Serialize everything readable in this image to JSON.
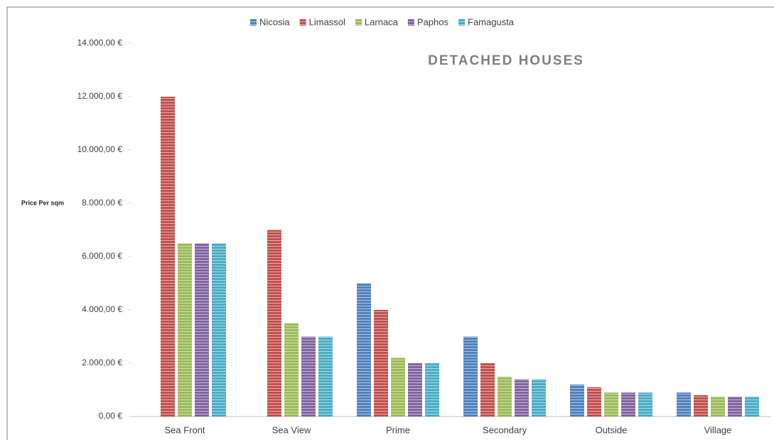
{
  "chart_data": {
    "type": "bar",
    "title": "DETACHED HOUSES",
    "y_label": "Price Per sqm",
    "categories": [
      "Sea Front",
      "Sea View",
      "Prime",
      "Secondary",
      "Outside",
      "Village"
    ],
    "series": [
      {
        "name": "Nicosia",
        "color": "#4f81bd",
        "values": [
          0,
          0,
          5000,
          3000,
          1200,
          900
        ]
      },
      {
        "name": "Limassol",
        "color": "#c0504d",
        "values": [
          12000,
          7000,
          4000,
          2000,
          1100,
          800
        ]
      },
      {
        "name": "Larnaca",
        "color": "#9bbb59",
        "values": [
          6500,
          3500,
          2200,
          1500,
          900,
          750
        ]
      },
      {
        "name": "Paphos",
        "color": "#8064a2",
        "values": [
          6500,
          3000,
          2000,
          1400,
          900,
          750
        ]
      },
      {
        "name": "Famagusta",
        "color": "#4bacc6",
        "values": [
          6500,
          3000,
          2000,
          1400,
          900,
          750
        ]
      }
    ],
    "ylim": [
      0,
      14000
    ],
    "yticks": [
      {
        "value": 0,
        "label": "0,00 €"
      },
      {
        "value": 2000,
        "label": "2.000,00 €"
      },
      {
        "value": 4000,
        "label": "4.000,00 €"
      },
      {
        "value": 6000,
        "label": "6.000,00 €"
      },
      {
        "value": 8000,
        "label": "8.000,00 €"
      },
      {
        "value": 10000,
        "label": "10.000,00 €"
      },
      {
        "value": 12000,
        "label": "12.000,00 €"
      },
      {
        "value": 14000,
        "label": "14.000,00 €"
      }
    ],
    "legend": "top",
    "grid": false
  }
}
